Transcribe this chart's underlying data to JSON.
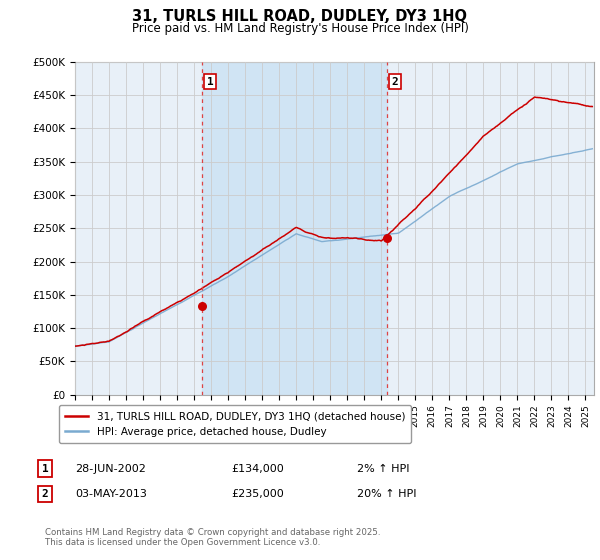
{
  "title": "31, TURLS HILL ROAD, DUDLEY, DY3 1HQ",
  "subtitle": "Price paid vs. HM Land Registry's House Price Index (HPI)",
  "ylabel_ticks": [
    "£0",
    "£50K",
    "£100K",
    "£150K",
    "£200K",
    "£250K",
    "£300K",
    "£350K",
    "£400K",
    "£450K",
    "£500K"
  ],
  "ylim": [
    0,
    500000
  ],
  "xlim_start": 1995.0,
  "xlim_end": 2025.5,
  "marker1_x": 2002.49,
  "marker1_y": 134000,
  "marker1_label": "1",
  "marker2_x": 2013.34,
  "marker2_y": 235000,
  "marker2_label": "2",
  "line1_color": "#cc0000",
  "line2_color": "#7aaad0",
  "grid_color": "#cccccc",
  "bg_color": "#e8f0f8",
  "highlight_bg": "#d0e4f4",
  "legend_line1": "31, TURLS HILL ROAD, DUDLEY, DY3 1HQ (detached house)",
  "legend_line2": "HPI: Average price, detached house, Dudley",
  "table_row1": [
    "1",
    "28-JUN-2002",
    "£134,000",
    "2% ↑ HPI"
  ],
  "table_row2": [
    "2",
    "03-MAY-2013",
    "£235,000",
    "20% ↑ HPI"
  ],
  "footnote": "Contains HM Land Registry data © Crown copyright and database right 2025.\nThis data is licensed under the Open Government Licence v3.0.",
  "marker_vline_color": "#dd4444"
}
